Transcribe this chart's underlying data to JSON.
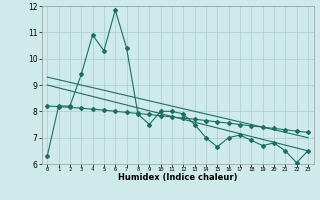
{
  "xlabel": "Humidex (Indice chaleur)",
  "bg_color": "#ceeaea",
  "grid_color": "#aacccc",
  "line_color": "#1a7060",
  "xlim": [
    -0.5,
    23.5
  ],
  "ylim": [
    6,
    12
  ],
  "yticks": [
    6,
    7,
    8,
    9,
    10,
    11,
    12
  ],
  "xticks": [
    0,
    1,
    2,
    3,
    4,
    5,
    6,
    7,
    8,
    9,
    10,
    11,
    12,
    13,
    14,
    15,
    16,
    17,
    18,
    19,
    20,
    21,
    22,
    23
  ],
  "series1_x": [
    0,
    1,
    2,
    3,
    4,
    5,
    6,
    7,
    8,
    9,
    10,
    11,
    12,
    13,
    14,
    15,
    16,
    17,
    18,
    19,
    20,
    21,
    22,
    23
  ],
  "series1_y": [
    6.3,
    8.2,
    8.2,
    9.4,
    10.9,
    10.3,
    11.85,
    10.4,
    7.9,
    7.5,
    8.0,
    8.0,
    7.9,
    7.5,
    7.0,
    6.65,
    7.0,
    7.1,
    6.9,
    6.7,
    6.8,
    6.5,
    6.05,
    6.5
  ],
  "series2_x": [
    0,
    1,
    2,
    3,
    4,
    5,
    6,
    7,
    8,
    9,
    10,
    11,
    12,
    13,
    14,
    15,
    16,
    17,
    18,
    19,
    20,
    21,
    22,
    23
  ],
  "series2_y": [
    8.2,
    8.18,
    8.15,
    8.12,
    8.08,
    8.05,
    8.0,
    7.96,
    7.92,
    7.88,
    7.83,
    7.79,
    7.74,
    7.7,
    7.65,
    7.6,
    7.55,
    7.5,
    7.45,
    7.4,
    7.35,
    7.3,
    7.25,
    7.2
  ],
  "trend1_x": [
    0,
    23
  ],
  "trend1_y": [
    9.3,
    7.0
  ],
  "trend2_x": [
    0,
    23
  ],
  "trend2_y": [
    9.0,
    6.5
  ]
}
